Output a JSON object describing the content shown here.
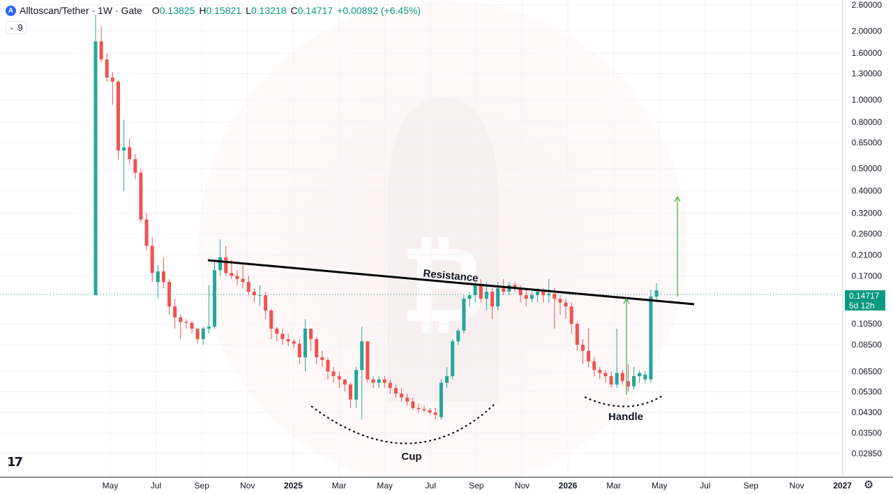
{
  "header": {
    "symbol_icon": "A",
    "title": "Alltoscan/Tether · 1W · Gate",
    "open_key": "O",
    "open": "0.13825",
    "high_key": "H",
    "high": "0.15821",
    "low_key": "L",
    "low": "0.13218",
    "close_key": "C",
    "close": "0.14717",
    "change": "+0.00892 (+6.45%)"
  },
  "indicator_badge": {
    "icon": "chevron-down-icon",
    "value": "9"
  },
  "logo_text": "17",
  "settings_icon": "gear-icon",
  "last_price_tag": {
    "price": "0.14717",
    "countdown": "5d 12h"
  },
  "colors": {
    "up": "#26a69a",
    "down": "#ef5350",
    "tag": "#089981",
    "arrow": "#4caf50"
  },
  "chart_data": {
    "type": "candlestick",
    "y_scale": "log",
    "y_ticks": [
      "2.60000",
      "2.00000",
      "1.60000",
      "1.30000",
      "1.00000",
      "0.80000",
      "0.65000",
      "0.50000",
      "0.40000",
      "0.32000",
      "0.26000",
      "0.21000",
      "0.17000",
      "0.10500",
      "0.08500",
      "0.06500",
      "0.05300",
      "0.04300",
      "0.03500",
      "0.02850"
    ],
    "x_ticks": [
      {
        "label": "May",
        "bold": false
      },
      {
        "label": "Jul",
        "bold": false
      },
      {
        "label": "Sep",
        "bold": false
      },
      {
        "label": "Nov",
        "bold": false
      },
      {
        "label": "2025",
        "bold": true
      },
      {
        "label": "Mar",
        "bold": false
      },
      {
        "label": "May",
        "bold": false
      },
      {
        "label": "Jul",
        "bold": false
      },
      {
        "label": "Sep",
        "bold": false
      },
      {
        "label": "Nov",
        "bold": false
      },
      {
        "label": "2026",
        "bold": true
      },
      {
        "label": "Mar",
        "bold": false
      },
      {
        "label": "May",
        "bold": false
      },
      {
        "label": "Jul",
        "bold": false
      },
      {
        "label": "Sep",
        "bold": false
      },
      {
        "label": "Nov",
        "bold": false
      },
      {
        "label": "2027",
        "bold": true
      }
    ],
    "candles": [
      [
        0.14,
        2.35,
        0.14,
        1.8
      ],
      [
        1.8,
        2.1,
        1.45,
        1.5
      ],
      [
        1.5,
        1.6,
        1.2,
        1.25
      ],
      [
        1.25,
        1.32,
        0.95,
        1.2
      ],
      [
        1.2,
        1.22,
        0.55,
        0.6
      ],
      [
        0.6,
        0.82,
        0.4,
        0.62
      ],
      [
        0.62,
        0.68,
        0.52,
        0.55
      ],
      [
        0.55,
        0.58,
        0.45,
        0.48
      ],
      [
        0.48,
        0.5,
        0.29,
        0.3
      ],
      [
        0.3,
        0.32,
        0.22,
        0.23
      ],
      [
        0.23,
        0.25,
        0.16,
        0.175
      ],
      [
        0.16,
        0.19,
        0.135,
        0.178
      ],
      [
        0.178,
        0.205,
        0.15,
        0.16
      ],
      [
        0.16,
        0.165,
        0.115,
        0.125
      ],
      [
        0.125,
        0.135,
        0.1,
        0.112
      ],
      [
        0.112,
        0.115,
        0.09,
        0.107
      ],
      [
        0.107,
        0.11,
        0.1,
        0.106
      ],
      [
        0.106,
        0.108,
        0.095,
        0.1
      ],
      [
        0.1,
        0.1,
        0.086,
        0.09
      ],
      [
        0.09,
        0.102,
        0.085,
        0.1
      ],
      [
        0.1,
        0.155,
        0.095,
        0.102
      ],
      [
        0.102,
        0.195,
        0.1,
        0.18
      ],
      [
        0.18,
        0.245,
        0.17,
        0.205
      ],
      [
        0.205,
        0.23,
        0.17,
        0.175
      ],
      [
        0.175,
        0.2,
        0.165,
        0.17
      ],
      [
        0.17,
        0.18,
        0.155,
        0.165
      ],
      [
        0.165,
        0.19,
        0.15,
        0.16
      ],
      [
        0.16,
        0.17,
        0.14,
        0.145
      ],
      [
        0.145,
        0.15,
        0.13,
        0.14
      ],
      [
        0.14,
        0.155,
        0.125,
        0.14
      ],
      [
        0.14,
        0.145,
        0.11,
        0.12
      ],
      [
        0.12,
        0.122,
        0.09,
        0.1
      ],
      [
        0.1,
        0.102,
        0.088,
        0.095
      ],
      [
        0.095,
        0.1,
        0.085,
        0.09
      ],
      [
        0.09,
        0.095,
        0.084,
        0.088
      ],
      [
        0.088,
        0.09,
        0.082,
        0.086
      ],
      [
        0.086,
        0.09,
        0.07,
        0.075
      ],
      [
        0.075,
        0.11,
        0.065,
        0.1
      ],
      [
        0.1,
        0.1,
        0.08,
        0.09
      ],
      [
        0.09,
        0.092,
        0.07,
        0.075
      ],
      [
        0.075,
        0.08,
        0.068,
        0.073
      ],
      [
        0.073,
        0.075,
        0.06,
        0.065
      ],
      [
        0.065,
        0.068,
        0.058,
        0.062
      ],
      [
        0.062,
        0.065,
        0.055,
        0.06
      ],
      [
        0.06,
        0.06,
        0.053,
        0.057
      ],
      [
        0.057,
        0.058,
        0.045,
        0.049
      ],
      [
        0.049,
        0.068,
        0.045,
        0.066
      ],
      [
        0.066,
        0.102,
        0.04,
        0.088
      ],
      [
        0.088,
        0.088,
        0.058,
        0.06
      ],
      [
        0.06,
        0.062,
        0.055,
        0.058
      ],
      [
        0.058,
        0.062,
        0.055,
        0.06
      ],
      [
        0.06,
        0.062,
        0.055,
        0.058
      ],
      [
        0.058,
        0.06,
        0.052,
        0.055
      ],
      [
        0.055,
        0.057,
        0.05,
        0.052
      ],
      [
        0.052,
        0.055,
        0.048,
        0.05
      ],
      [
        0.05,
        0.052,
        0.046,
        0.048
      ],
      [
        0.048,
        0.05,
        0.044,
        0.045
      ],
      [
        0.045,
        0.047,
        0.043,
        0.0445
      ],
      [
        0.0445,
        0.046,
        0.043,
        0.044
      ],
      [
        0.044,
        0.045,
        0.042,
        0.043
      ],
      [
        0.043,
        0.045,
        0.04,
        0.042
      ],
      [
        0.041,
        0.06,
        0.04,
        0.058
      ],
      [
        0.058,
        0.068,
        0.055,
        0.062
      ],
      [
        0.062,
        0.09,
        0.06,
        0.088
      ],
      [
        0.088,
        0.1,
        0.085,
        0.098
      ],
      [
        0.098,
        0.14,
        0.095,
        0.135
      ],
      [
        0.135,
        0.145,
        0.125,
        0.14
      ],
      [
        0.14,
        0.16,
        0.13,
        0.155
      ],
      [
        0.155,
        0.165,
        0.13,
        0.135
      ],
      [
        0.135,
        0.16,
        0.12,
        0.145
      ],
      [
        0.145,
        0.15,
        0.11,
        0.125
      ],
      [
        0.125,
        0.16,
        0.12,
        0.15
      ],
      [
        0.15,
        0.165,
        0.14,
        0.145
      ],
      [
        0.145,
        0.16,
        0.14,
        0.155
      ],
      [
        0.155,
        0.16,
        0.145,
        0.15
      ],
      [
        0.15,
        0.155,
        0.13,
        0.14
      ],
      [
        0.14,
        0.15,
        0.125,
        0.135
      ],
      [
        0.135,
        0.145,
        0.13,
        0.14
      ],
      [
        0.14,
        0.15,
        0.13,
        0.145
      ],
      [
        0.145,
        0.15,
        0.13,
        0.14
      ],
      [
        0.14,
        0.165,
        0.13,
        0.142
      ],
      [
        0.142,
        0.15,
        0.1,
        0.135
      ],
      [
        0.135,
        0.14,
        0.115,
        0.13
      ],
      [
        0.13,
        0.135,
        0.11,
        0.125
      ],
      [
        0.125,
        0.13,
        0.095,
        0.105
      ],
      [
        0.105,
        0.107,
        0.08,
        0.085
      ],
      [
        0.085,
        0.09,
        0.07,
        0.08
      ],
      [
        0.08,
        0.1,
        0.068,
        0.072
      ],
      [
        0.072,
        0.075,
        0.062,
        0.066
      ],
      [
        0.066,
        0.068,
        0.06,
        0.064
      ],
      [
        0.064,
        0.066,
        0.058,
        0.062
      ],
      [
        0.062,
        0.065,
        0.055,
        0.057
      ],
      [
        0.057,
        0.1,
        0.055,
        0.064
      ],
      [
        0.064,
        0.066,
        0.057,
        0.059
      ],
      [
        0.059,
        0.07,
        0.053,
        0.056
      ],
      [
        0.056,
        0.068,
        0.054,
        0.062
      ],
      [
        0.062,
        0.066,
        0.058,
        0.064
      ],
      [
        0.06,
        0.065,
        0.058,
        0.063
      ],
      [
        0.06,
        0.148,
        0.058,
        0.138
      ],
      [
        0.138,
        0.158,
        0.132,
        0.147
      ]
    ],
    "annotations": [
      {
        "name": "resistance",
        "text": "Resistance"
      },
      {
        "name": "cup",
        "text": "Cup"
      },
      {
        "name": "handle",
        "text": "Handle"
      }
    ]
  }
}
